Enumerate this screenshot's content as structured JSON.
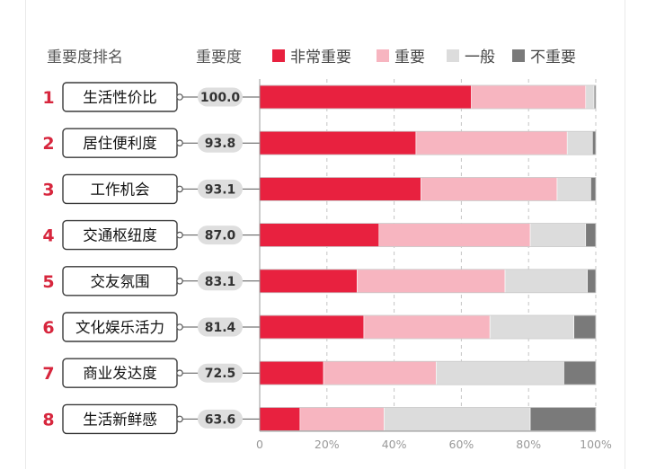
{
  "chart_data": {
    "type": "bar",
    "stacked": true,
    "orientation": "horizontal",
    "header": {
      "rank_label": "重要度排名",
      "score_label": "重要度"
    },
    "categories": [
      "生活性价比",
      "居住便利度",
      "工作机会",
      "交通枢纽度",
      "交友氛围",
      "文化娱乐活力",
      "商业发达度",
      "生活新鲜感"
    ],
    "ranks": [
      "1",
      "2",
      "3",
      "4",
      "5",
      "6",
      "7",
      "8"
    ],
    "scores": [
      "100.0",
      "93.8",
      "93.1",
      "87.0",
      "83.1",
      "81.4",
      "72.5",
      "63.6"
    ],
    "series": [
      {
        "name": "非常重要",
        "color": "#e8213f",
        "values": [
          63,
          46.5,
          48,
          35.5,
          29,
          31,
          19,
          12
        ]
      },
      {
        "name": "重要",
        "color": "#f7b5c0",
        "values": [
          34,
          45,
          40.5,
          45,
          44,
          37.5,
          33.5,
          25
        ]
      },
      {
        "name": "一般",
        "color": "#dcdcdc",
        "values": [
          2.5,
          7.5,
          10,
          16.5,
          24.5,
          25,
          38,
          43.5
        ]
      },
      {
        "name": "不重要",
        "color": "#7a7a7a",
        "values": [
          0.5,
          1,
          1.5,
          3,
          2.5,
          6.5,
          9.5,
          19.5
        ]
      }
    ],
    "x_ticks": [
      "0",
      "20%",
      "40%",
      "60%",
      "80%",
      "100%"
    ],
    "xlim": [
      0,
      100
    ],
    "grid": true,
    "legend_position": "top"
  }
}
